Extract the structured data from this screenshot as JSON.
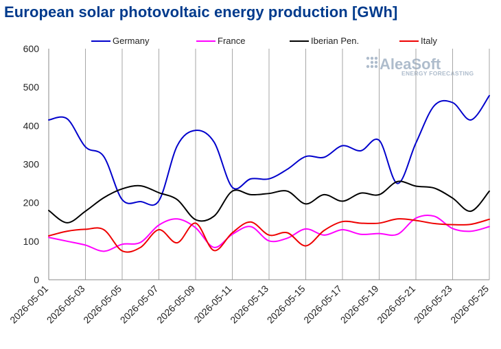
{
  "chart_data": {
    "type": "line",
    "title": "European solar photovoltaic energy production [GWh]",
    "xlabel": "",
    "ylabel": "",
    "ylim": [
      0,
      600
    ],
    "yticks": [
      0,
      100,
      200,
      300,
      400,
      500,
      600
    ],
    "grid": "vertical",
    "legend_position": "top",
    "x": [
      "2026-05-01",
      "2026-05-02",
      "2026-05-03",
      "2026-05-04",
      "2026-05-05",
      "2026-05-06",
      "2026-05-07",
      "2026-05-08",
      "2026-05-09",
      "2026-05-10",
      "2026-05-11",
      "2026-05-12",
      "2026-05-13",
      "2026-05-14",
      "2026-05-15",
      "2026-05-16",
      "2026-05-17",
      "2026-05-18",
      "2026-05-19",
      "2026-05-20",
      "2026-05-21",
      "2026-05-22",
      "2026-05-23",
      "2026-05-24",
      "2026-05-25"
    ],
    "x_tick_labels": [
      "2026-05-01",
      "2026-05-03",
      "2026-05-05",
      "2026-05-07",
      "2026-05-09",
      "2026-05-11",
      "2026-05-13",
      "2026-05-15",
      "2026-05-17",
      "2026-05-19",
      "2026-05-21",
      "2026-05-23",
      "2026-05-25"
    ],
    "series": [
      {
        "name": "Germany",
        "color": "#0000cc",
        "values": [
          415,
          418,
          345,
          320,
          208,
          203,
          205,
          348,
          388,
          358,
          240,
          262,
          262,
          287,
          320,
          318,
          348,
          335,
          362,
          250,
          355,
          452,
          460,
          415,
          478
        ]
      },
      {
        "name": "France",
        "color": "#ff00ff",
        "values": [
          110,
          100,
          90,
          74,
          92,
          97,
          142,
          158,
          135,
          84,
          118,
          138,
          101,
          108,
          132,
          116,
          130,
          118,
          120,
          118,
          160,
          165,
          133,
          126,
          138
        ]
      },
      {
        "name": "Iberian Pen.",
        "color": "#000000",
        "values": [
          180,
          148,
          178,
          213,
          236,
          244,
          226,
          208,
          156,
          165,
          230,
          221,
          224,
          230,
          197,
          221,
          204,
          225,
          221,
          255,
          243,
          238,
          212,
          178,
          230
        ]
      },
      {
        "name": "Italy",
        "color": "#ee0000",
        "values": [
          114,
          126,
          131,
          130,
          75,
          84,
          130,
          96,
          147,
          76,
          122,
          150,
          116,
          122,
          88,
          128,
          151,
          147,
          147,
          158,
          154,
          146,
          143,
          144,
          157
        ]
      }
    ]
  },
  "watermark": {
    "brand": "AleaSoft",
    "tagline": "ENERGY FORECASTING"
  }
}
